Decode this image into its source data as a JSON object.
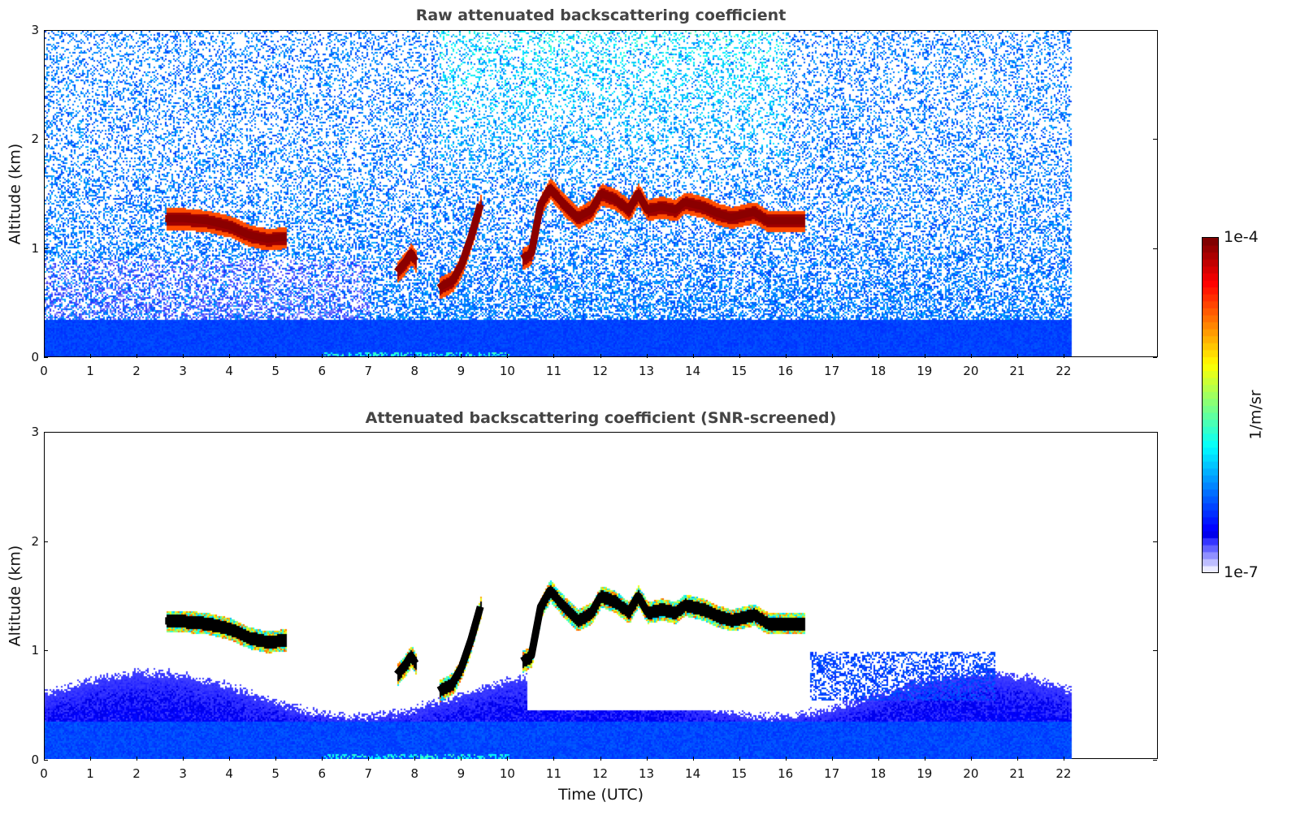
{
  "chart_data": [
    {
      "type": "heatmap",
      "title": "Raw attenuated backscattering coefficient",
      "xlabel": "",
      "ylabel": "Altitude (km)",
      "xlim": [
        0,
        24
      ],
      "ylim": [
        0,
        3
      ],
      "xticks": [
        "0",
        "1",
        "2",
        "3",
        "4",
        "5",
        "6",
        "7",
        "8",
        "9",
        "10",
        "11",
        "12",
        "13",
        "14",
        "15",
        "16",
        "17",
        "18",
        "19",
        "20",
        "21",
        "22"
      ],
      "yticks": [
        "0",
        "1",
        "2",
        "3"
      ],
      "data_end_time": 22.15,
      "cloud_layers": [
        {
          "name": "cloud-layer-1",
          "points": [
            [
              2.6,
              1.27
            ],
            [
              3.0,
              1.27
            ],
            [
              3.5,
              1.25
            ],
            [
              4.0,
              1.2
            ],
            [
              4.4,
              1.12
            ],
            [
              4.8,
              1.08
            ],
            [
              5.2,
              1.1
            ]
          ]
        },
        {
          "name": "cloud-layer-2",
          "points": [
            [
              7.6,
              0.78
            ],
            [
              7.8,
              0.88
            ],
            [
              7.9,
              0.95
            ],
            [
              8.0,
              0.88
            ]
          ]
        },
        {
          "name": "cloud-layer-3",
          "points": [
            [
              8.5,
              0.63
            ],
            [
              8.8,
              0.7
            ],
            [
              9.0,
              0.85
            ],
            [
              9.2,
              1.1
            ],
            [
              9.4,
              1.4
            ]
          ]
        },
        {
          "name": "cloud-layer-4",
          "points": [
            [
              10.3,
              0.9
            ],
            [
              10.5,
              0.95
            ],
            [
              10.7,
              1.4
            ],
            [
              10.9,
              1.55
            ],
            [
              11.2,
              1.4
            ],
            [
              11.5,
              1.28
            ],
            [
              11.8,
              1.35
            ],
            [
              12.0,
              1.5
            ],
            [
              12.3,
              1.45
            ],
            [
              12.6,
              1.35
            ],
            [
              12.8,
              1.5
            ],
            [
              13.0,
              1.35
            ],
            [
              13.3,
              1.38
            ],
            [
              13.6,
              1.35
            ],
            [
              13.8,
              1.42
            ],
            [
              14.2,
              1.38
            ],
            [
              14.5,
              1.32
            ],
            [
              14.8,
              1.28
            ],
            [
              15.0,
              1.3
            ],
            [
              15.3,
              1.33
            ],
            [
              15.6,
              1.25
            ],
            [
              16.0,
              1.25
            ],
            [
              16.4,
              1.25
            ]
          ]
        }
      ]
    },
    {
      "type": "heatmap",
      "title": "Attenuated backscattering coefficient (SNR-screened)",
      "xlabel": "Time (UTC)",
      "ylabel": "Altitude (km)",
      "xlim": [
        0,
        24
      ],
      "ylim": [
        0,
        3
      ],
      "xticks": [
        "0",
        "1",
        "2",
        "3",
        "4",
        "5",
        "6",
        "7",
        "8",
        "9",
        "10",
        "11",
        "12",
        "13",
        "14",
        "15",
        "16",
        "17",
        "18",
        "19",
        "20",
        "21",
        "22"
      ],
      "yticks": [
        "0",
        "1",
        "2",
        "3"
      ],
      "data_end_time": 22.15
    }
  ],
  "colorbar": {
    "label": "1/m/sr",
    "max_label": "1e-4",
    "min_label": "1e-7",
    "range": [
      1e-07,
      0.0001
    ],
    "scale": "log",
    "colormap": "jet"
  }
}
